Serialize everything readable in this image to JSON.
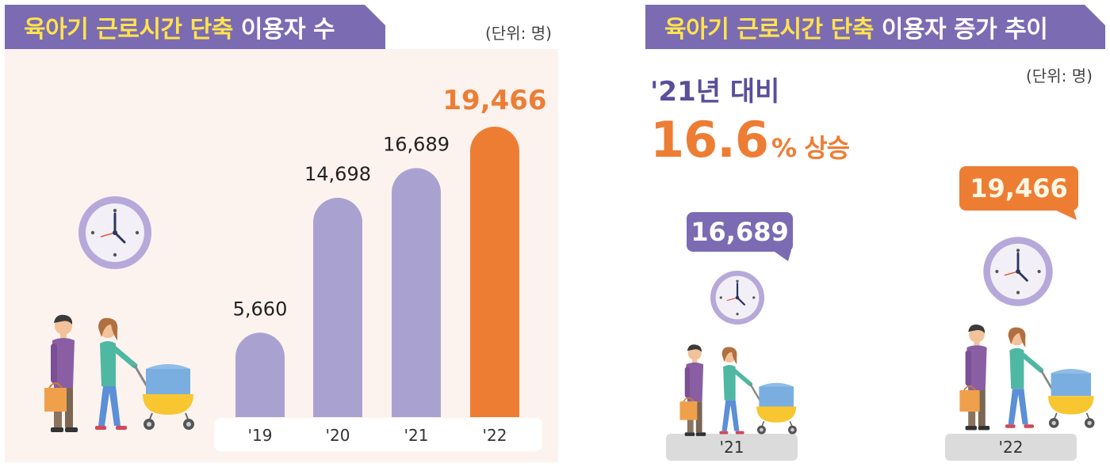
{
  "left": {
    "title_highlight": "육아기 근로시간 단축",
    "title_rest": "이용자 수",
    "unit": "(단위: 명)"
  },
  "right": {
    "title_highlight": "육아기 근로시간 단축",
    "title_rest": "이용자 증가 추이",
    "unit": "(단위: 명)",
    "compare_label": "'21년 대비",
    "change_value": "16.6",
    "change_suffix": "% 상승",
    "tag_21": "16,689",
    "tag_22": "19,466",
    "floor_21": "'21",
    "floor_22": "'22"
  },
  "colors": {
    "banner": "#7b6bb3",
    "highlight": "#ffe34d",
    "bar_normal": "#a9a2d1",
    "bar_highlight": "#ee7d34",
    "panel": "#fcf3ef"
  },
  "chart_data": [
    {
      "type": "bar",
      "title": "육아기 근로시간 단축 이용자 수",
      "unit": "(단위: 명)",
      "categories": [
        "'19",
        "'20",
        "'21",
        "'22"
      ],
      "values": [
        5660,
        14698,
        16689,
        19466
      ],
      "value_labels": [
        "5,660",
        "14,698",
        "16,689",
        "19,466"
      ],
      "highlight_index": 3,
      "grid": false
    }
  ]
}
